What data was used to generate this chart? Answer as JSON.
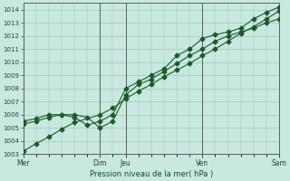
{
  "xlabel": "Pression niveau de la mer( hPa )",
  "ylim": [
    1003,
    1014.5
  ],
  "yticks": [
    1003,
    1004,
    1005,
    1006,
    1007,
    1008,
    1009,
    1010,
    1011,
    1012,
    1013,
    1014
  ],
  "bg_color": "#c8e8e0",
  "grid_color": "#a0c8c0",
  "line_color": "#1a5c28",
  "tick_label_color": "#1a4a2a",
  "xtick_labels": [
    "Mer",
    "Dim",
    "Jeu",
    "Ven",
    "Sam"
  ],
  "xtick_positions": [
    0,
    3,
    4,
    7,
    10
  ],
  "vline_positions": [
    0,
    3,
    4,
    7,
    10
  ],
  "xlim": [
    0,
    10
  ],
  "line1_x": [
    0,
    0.5,
    1.0,
    1.5,
    2.0,
    3.0,
    3.5,
    4.0,
    4.5,
    5.0,
    5.5,
    6.0,
    6.5,
    7.0,
    7.5,
    8.0,
    8.5,
    9.0,
    9.5,
    10.0
  ],
  "line1_y": [
    1003.2,
    1003.8,
    1004.3,
    1004.9,
    1005.4,
    1006.0,
    1006.5,
    1007.2,
    1007.8,
    1008.3,
    1008.9,
    1009.4,
    1009.9,
    1010.5,
    1011.0,
    1011.6,
    1012.2,
    1012.7,
    1013.3,
    1013.9
  ],
  "line2_x": [
    0,
    0.5,
    1.0,
    1.5,
    2.0,
    2.5,
    3.0,
    3.5,
    4.0,
    4.5,
    5.0,
    5.5,
    6.0,
    6.5,
    7.0,
    7.5,
    8.0,
    8.5,
    9.0,
    9.5,
    10.0
  ],
  "line2_y": [
    1005.3,
    1005.5,
    1005.8,
    1006.0,
    1006.0,
    1005.8,
    1005.0,
    1005.5,
    1007.5,
    1008.3,
    1008.7,
    1009.3,
    1009.9,
    1010.5,
    1011.0,
    1011.6,
    1012.0,
    1012.3,
    1012.6,
    1013.0,
    1013.3
  ],
  "line3_x": [
    0,
    0.5,
    1.0,
    1.5,
    2.0,
    2.5,
    3.0,
    3.5,
    4.0,
    4.5,
    5.0,
    5.5,
    6.0,
    6.5,
    7.0,
    7.5,
    8.0,
    8.5,
    9.0,
    9.5,
    10.0
  ],
  "line3_y": [
    1005.5,
    1005.7,
    1006.0,
    1006.0,
    1005.8,
    1005.2,
    1005.5,
    1006.0,
    1008.0,
    1008.5,
    1009.0,
    1009.5,
    1010.5,
    1011.0,
    1011.8,
    1012.1,
    1012.3,
    1012.6,
    1013.3,
    1013.8,
    1014.2
  ]
}
